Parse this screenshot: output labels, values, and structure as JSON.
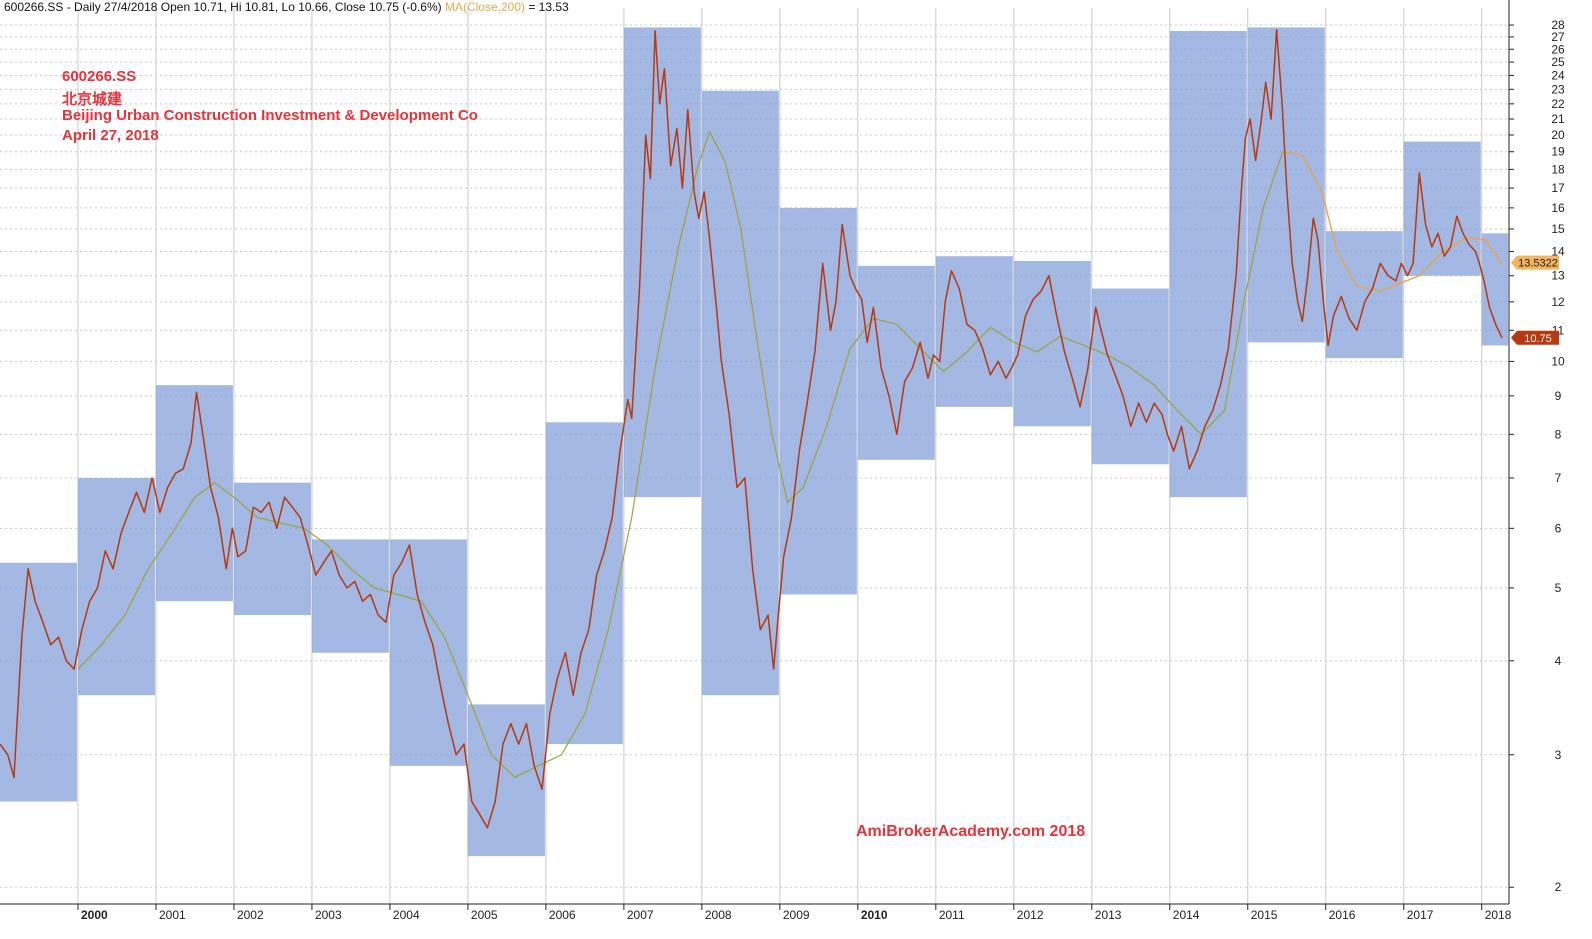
{
  "header": {
    "text": "600266.SS - Daily 27/4/2018 Open 10.71, Hi 10.81, Lo 10.66, Close 10.75 (-0.6%)",
    "ma_label": "MA(Close,200)",
    "ma_value": " = 13.53"
  },
  "annotations": {
    "ticker": "600266.SS",
    "chinese_name": "北京城建",
    "company_name": "Beijing Urban Construction Investment & Development Co",
    "date": "April 27, 2018"
  },
  "watermark": "AmiBrokerAcademy.com  2018",
  "colors": {
    "price": "#b53a12",
    "ma": "#9aa43c",
    "ma_late": "#f2a54a",
    "box": "#7f9dd8",
    "grid": "#c8c8c8",
    "annotation": "#e8323a",
    "close_badge": "#b53a12",
    "ma_badge": "#f4b35c"
  },
  "chart_data": {
    "type": "line",
    "scale": "log",
    "y_ticks": [
      2,
      3,
      4,
      5,
      6,
      7,
      8,
      9,
      10,
      11,
      12,
      13,
      14,
      15,
      16,
      17,
      18,
      19,
      20,
      21,
      22,
      23,
      24,
      25,
      26,
      27,
      28
    ],
    "ylim": [
      1.9,
      29.5
    ],
    "x_ticks": [
      "2000",
      "2001",
      "2002",
      "2003",
      "2004",
      "2005",
      "2006",
      "2007",
      "2008",
      "2009",
      "2010",
      "2011",
      "2012",
      "2013",
      "2014",
      "2015",
      "2016",
      "2017",
      "2018"
    ],
    "bold_x_ticks": [
      "2000",
      "2010"
    ],
    "last_close": "10.75",
    "last_ma": "13.5322",
    "yearly_ranges": [
      {
        "period": "1999",
        "low": 2.6,
        "high": 5.4
      },
      {
        "period": "2000",
        "low": 3.6,
        "high": 7.0
      },
      {
        "period": "2001",
        "low": 4.8,
        "high": 9.3
      },
      {
        "period": "2002",
        "low": 4.6,
        "high": 6.9
      },
      {
        "period": "2003",
        "low": 4.1,
        "high": 5.8
      },
      {
        "period": "2004",
        "low": 2.9,
        "high": 5.8
      },
      {
        "period": "2005",
        "low": 2.2,
        "high": 3.5
      },
      {
        "period": "2006",
        "low": 3.1,
        "high": 8.3
      },
      {
        "period": "2007",
        "low": 6.6,
        "high": 27.8
      },
      {
        "period": "2008",
        "low": 3.6,
        "high": 22.9
      },
      {
        "period": "2009",
        "low": 4.9,
        "high": 16.0
      },
      {
        "period": "2010",
        "low": 7.4,
        "high": 13.4
      },
      {
        "period": "2011",
        "low": 8.7,
        "high": 13.8
      },
      {
        "period": "2012",
        "low": 8.2,
        "high": 13.6
      },
      {
        "period": "2013",
        "low": 7.3,
        "high": 12.5
      },
      {
        "period": "2014",
        "low": 6.6,
        "high": 27.5
      },
      {
        "period": "2015",
        "low": 10.6,
        "high": 27.8
      },
      {
        "period": "2016",
        "low": 10.1,
        "high": 14.9
      },
      {
        "period": "2017",
        "low": 13.0,
        "high": 19.6
      },
      {
        "period": "2018",
        "low": 10.5,
        "high": 14.8
      }
    ],
    "price_series": [
      [
        1999.0,
        3.1
      ],
      [
        1999.1,
        3.0
      ],
      [
        1999.18,
        2.8
      ],
      [
        1999.28,
        4.3
      ],
      [
        1999.36,
        5.3
      ],
      [
        1999.45,
        4.8
      ],
      [
        1999.55,
        4.5
      ],
      [
        1999.65,
        4.2
      ],
      [
        1999.75,
        4.3
      ],
      [
        1999.85,
        4.0
      ],
      [
        1999.95,
        3.9
      ],
      [
        2000.05,
        4.4
      ],
      [
        2000.15,
        4.8
      ],
      [
        2000.25,
        5.0
      ],
      [
        2000.35,
        5.6
      ],
      [
        2000.45,
        5.3
      ],
      [
        2000.55,
        5.9
      ],
      [
        2000.65,
        6.3
      ],
      [
        2000.75,
        6.7
      ],
      [
        2000.85,
        6.3
      ],
      [
        2000.95,
        7.0
      ],
      [
        2001.05,
        6.3
      ],
      [
        2001.15,
        6.8
      ],
      [
        2001.25,
        7.1
      ],
      [
        2001.35,
        7.2
      ],
      [
        2001.45,
        7.8
      ],
      [
        2001.52,
        9.1
      ],
      [
        2001.6,
        8.0
      ],
      [
        2001.7,
        6.8
      ],
      [
        2001.8,
        6.2
      ],
      [
        2001.9,
        5.3
      ],
      [
        2001.98,
        6.0
      ],
      [
        2002.05,
        5.5
      ],
      [
        2002.15,
        5.6
      ],
      [
        2002.25,
        6.4
      ],
      [
        2002.35,
        6.3
      ],
      [
        2002.45,
        6.5
      ],
      [
        2002.55,
        6.0
      ],
      [
        2002.65,
        6.6
      ],
      [
        2002.75,
        6.4
      ],
      [
        2002.85,
        6.2
      ],
      [
        2002.95,
        5.7
      ],
      [
        2003.05,
        5.2
      ],
      [
        2003.15,
        5.4
      ],
      [
        2003.25,
        5.6
      ],
      [
        2003.35,
        5.2
      ],
      [
        2003.45,
        5.0
      ],
      [
        2003.55,
        5.1
      ],
      [
        2003.65,
        4.8
      ],
      [
        2003.75,
        4.9
      ],
      [
        2003.85,
        4.6
      ],
      [
        2003.95,
        4.5
      ],
      [
        2004.05,
        5.2
      ],
      [
        2004.15,
        5.4
      ],
      [
        2004.25,
        5.7
      ],
      [
        2004.35,
        4.9
      ],
      [
        2004.45,
        4.5
      ],
      [
        2004.55,
        4.2
      ],
      [
        2004.65,
        3.7
      ],
      [
        2004.75,
        3.3
      ],
      [
        2004.85,
        3.0
      ],
      [
        2004.95,
        3.1
      ],
      [
        2005.05,
        2.6
      ],
      [
        2005.15,
        2.5
      ],
      [
        2005.25,
        2.4
      ],
      [
        2005.35,
        2.6
      ],
      [
        2005.45,
        3.1
      ],
      [
        2005.55,
        3.3
      ],
      [
        2005.65,
        3.1
      ],
      [
        2005.75,
        3.3
      ],
      [
        2005.85,
        2.9
      ],
      [
        2005.95,
        2.7
      ],
      [
        2006.05,
        3.4
      ],
      [
        2006.15,
        3.8
      ],
      [
        2006.25,
        4.1
      ],
      [
        2006.35,
        3.6
      ],
      [
        2006.45,
        4.1
      ],
      [
        2006.55,
        4.4
      ],
      [
        2006.65,
        5.2
      ],
      [
        2006.75,
        5.6
      ],
      [
        2006.85,
        6.2
      ],
      [
        2006.95,
        7.6
      ],
      [
        2007.05,
        8.9
      ],
      [
        2007.1,
        8.4
      ],
      [
        2007.2,
        12.5
      ],
      [
        2007.28,
        20.0
      ],
      [
        2007.34,
        17.5
      ],
      [
        2007.4,
        27.5
      ],
      [
        2007.46,
        22.0
      ],
      [
        2007.52,
        24.5
      ],
      [
        2007.6,
        18.2
      ],
      [
        2007.68,
        20.4
      ],
      [
        2007.75,
        17.0
      ],
      [
        2007.82,
        21.6
      ],
      [
        2007.9,
        16.8
      ],
      [
        2007.96,
        15.5
      ],
      [
        2008.03,
        16.8
      ],
      [
        2008.1,
        14.5
      ],
      [
        2008.18,
        12.0
      ],
      [
        2008.25,
        10.0
      ],
      [
        2008.35,
        8.5
      ],
      [
        2008.45,
        6.8
      ],
      [
        2008.55,
        7.0
      ],
      [
        2008.65,
        5.3
      ],
      [
        2008.75,
        4.4
      ],
      [
        2008.85,
        4.6
      ],
      [
        2008.92,
        3.9
      ],
      [
        2008.98,
        4.6
      ],
      [
        2009.05,
        5.5
      ],
      [
        2009.15,
        6.2
      ],
      [
        2009.25,
        7.6
      ],
      [
        2009.35,
        8.8
      ],
      [
        2009.45,
        10.3
      ],
      [
        2009.55,
        13.5
      ],
      [
        2009.65,
        11.0
      ],
      [
        2009.72,
        12.0
      ],
      [
        2009.8,
        15.2
      ],
      [
        2009.9,
        13.0
      ],
      [
        2009.97,
        12.5
      ],
      [
        2010.05,
        12.1
      ],
      [
        2010.12,
        10.6
      ],
      [
        2010.2,
        11.8
      ],
      [
        2010.3,
        9.8
      ],
      [
        2010.4,
        9.0
      ],
      [
        2010.5,
        8.0
      ],
      [
        2010.6,
        9.4
      ],
      [
        2010.7,
        9.8
      ],
      [
        2010.8,
        10.6
      ],
      [
        2010.9,
        9.5
      ],
      [
        2010.97,
        10.2
      ],
      [
        2011.05,
        10.0
      ],
      [
        2011.12,
        12.0
      ],
      [
        2011.2,
        13.2
      ],
      [
        2011.3,
        12.5
      ],
      [
        2011.4,
        11.2
      ],
      [
        2011.5,
        11.0
      ],
      [
        2011.6,
        10.4
      ],
      [
        2011.7,
        9.6
      ],
      [
        2011.8,
        10.0
      ],
      [
        2011.9,
        9.5
      ],
      [
        2011.97,
        9.8
      ],
      [
        2012.05,
        10.2
      ],
      [
        2012.15,
        11.5
      ],
      [
        2012.25,
        12.1
      ],
      [
        2012.35,
        12.4
      ],
      [
        2012.45,
        13.0
      ],
      [
        2012.55,
        11.5
      ],
      [
        2012.65,
        10.3
      ],
      [
        2012.75,
        9.5
      ],
      [
        2012.85,
        8.7
      ],
      [
        2012.95,
        9.8
      ],
      [
        2013.05,
        11.8
      ],
      [
        2013.12,
        11.0
      ],
      [
        2013.2,
        10.2
      ],
      [
        2013.3,
        9.6
      ],
      [
        2013.4,
        9.0
      ],
      [
        2013.5,
        8.2
      ],
      [
        2013.6,
        8.8
      ],
      [
        2013.7,
        8.3
      ],
      [
        2013.8,
        8.8
      ],
      [
        2013.9,
        8.5
      ],
      [
        2013.97,
        8.0
      ],
      [
        2014.05,
        7.6
      ],
      [
        2014.15,
        8.2
      ],
      [
        2014.25,
        7.2
      ],
      [
        2014.35,
        7.6
      ],
      [
        2014.45,
        8.2
      ],
      [
        2014.55,
        8.6
      ],
      [
        2014.65,
        9.3
      ],
      [
        2014.75,
        10.4
      ],
      [
        2014.85,
        13.0
      ],
      [
        2014.92,
        17.0
      ],
      [
        2014.97,
        19.8
      ],
      [
        2015.03,
        21.0
      ],
      [
        2015.1,
        18.5
      ],
      [
        2015.17,
        20.8
      ],
      [
        2015.23,
        23.5
      ],
      [
        2015.3,
        21.0
      ],
      [
        2015.37,
        27.6
      ],
      [
        2015.44,
        22.0
      ],
      [
        2015.5,
        17.0
      ],
      [
        2015.57,
        13.5
      ],
      [
        2015.64,
        12.0
      ],
      [
        2015.7,
        11.3
      ],
      [
        2015.77,
        13.0
      ],
      [
        2015.84,
        15.5
      ],
      [
        2015.9,
        14.5
      ],
      [
        2015.97,
        12.0
      ],
      [
        2016.03,
        10.5
      ],
      [
        2016.1,
        11.5
      ],
      [
        2016.2,
        12.2
      ],
      [
        2016.3,
        11.4
      ],
      [
        2016.4,
        11.0
      ],
      [
        2016.5,
        12.0
      ],
      [
        2016.6,
        12.5
      ],
      [
        2016.7,
        13.5
      ],
      [
        2016.8,
        13.0
      ],
      [
        2016.9,
        12.8
      ],
      [
        2016.97,
        13.5
      ],
      [
        2017.05,
        13.0
      ],
      [
        2017.12,
        13.5
      ],
      [
        2017.2,
        17.8
      ],
      [
        2017.28,
        15.2
      ],
      [
        2017.36,
        14.2
      ],
      [
        2017.44,
        14.8
      ],
      [
        2017.52,
        13.8
      ],
      [
        2017.6,
        14.2
      ],
      [
        2017.68,
        15.6
      ],
      [
        2017.76,
        14.8
      ],
      [
        2017.84,
        14.3
      ],
      [
        2017.92,
        14.0
      ],
      [
        2017.97,
        13.5
      ],
      [
        2018.03,
        12.8
      ],
      [
        2018.1,
        11.8
      ],
      [
        2018.18,
        11.2
      ],
      [
        2018.26,
        10.75
      ]
    ],
    "ma_series": [
      [
        2000.0,
        3.9
      ],
      [
        2000.3,
        4.2
      ],
      [
        2000.6,
        4.6
      ],
      [
        2000.9,
        5.3
      ],
      [
        2001.2,
        5.9
      ],
      [
        2001.5,
        6.6
      ],
      [
        2001.75,
        6.9
      ],
      [
        2002.0,
        6.6
      ],
      [
        2002.3,
        6.2
      ],
      [
        2002.6,
        6.1
      ],
      [
        2002.9,
        6.0
      ],
      [
        2003.2,
        5.7
      ],
      [
        2003.5,
        5.3
      ],
      [
        2003.8,
        5.0
      ],
      [
        2004.1,
        4.9
      ],
      [
        2004.4,
        4.8
      ],
      [
        2004.7,
        4.3
      ],
      [
        2005.0,
        3.6
      ],
      [
        2005.3,
        3.0
      ],
      [
        2005.6,
        2.8
      ],
      [
        2005.9,
        2.9
      ],
      [
        2006.2,
        3.0
      ],
      [
        2006.5,
        3.4
      ],
      [
        2006.8,
        4.4
      ],
      [
        2007.1,
        6.2
      ],
      [
        2007.4,
        9.8
      ],
      [
        2007.7,
        14.2
      ],
      [
        2007.95,
        18.2
      ],
      [
        2008.1,
        20.2
      ],
      [
        2008.3,
        18.4
      ],
      [
        2008.5,
        15.0
      ],
      [
        2008.7,
        10.8
      ],
      [
        2008.9,
        8.0
      ],
      [
        2009.1,
        6.5
      ],
      [
        2009.3,
        6.8
      ],
      [
        2009.6,
        8.2
      ],
      [
        2009.9,
        10.4
      ],
      [
        2010.2,
        11.4
      ],
      [
        2010.5,
        11.2
      ],
      [
        2010.8,
        10.4
      ],
      [
        2011.1,
        9.7
      ],
      [
        2011.4,
        10.3
      ],
      [
        2011.7,
        11.1
      ],
      [
        2012.0,
        10.6
      ],
      [
        2012.3,
        10.3
      ],
      [
        2012.6,
        10.8
      ],
      [
        2012.9,
        10.5
      ],
      [
        2013.2,
        10.2
      ],
      [
        2013.5,
        9.8
      ],
      [
        2013.8,
        9.3
      ],
      [
        2014.1,
        8.6
      ],
      [
        2014.4,
        8.0
      ],
      [
        2014.7,
        8.6
      ],
      [
        2014.95,
        12.0
      ],
      [
        2015.2,
        16.0
      ],
      [
        2015.45,
        19.0
      ],
      [
        2015.7,
        18.8
      ],
      [
        2015.95,
        16.8
      ],
      [
        2016.15,
        14.0
      ],
      [
        2016.4,
        12.6
      ],
      [
        2016.7,
        12.4
      ],
      [
        2016.95,
        12.7
      ],
      [
        2017.2,
        13.0
      ],
      [
        2017.5,
        14.0
      ],
      [
        2017.8,
        14.6
      ],
      [
        2018.05,
        14.5
      ],
      [
        2018.26,
        13.5
      ]
    ]
  }
}
